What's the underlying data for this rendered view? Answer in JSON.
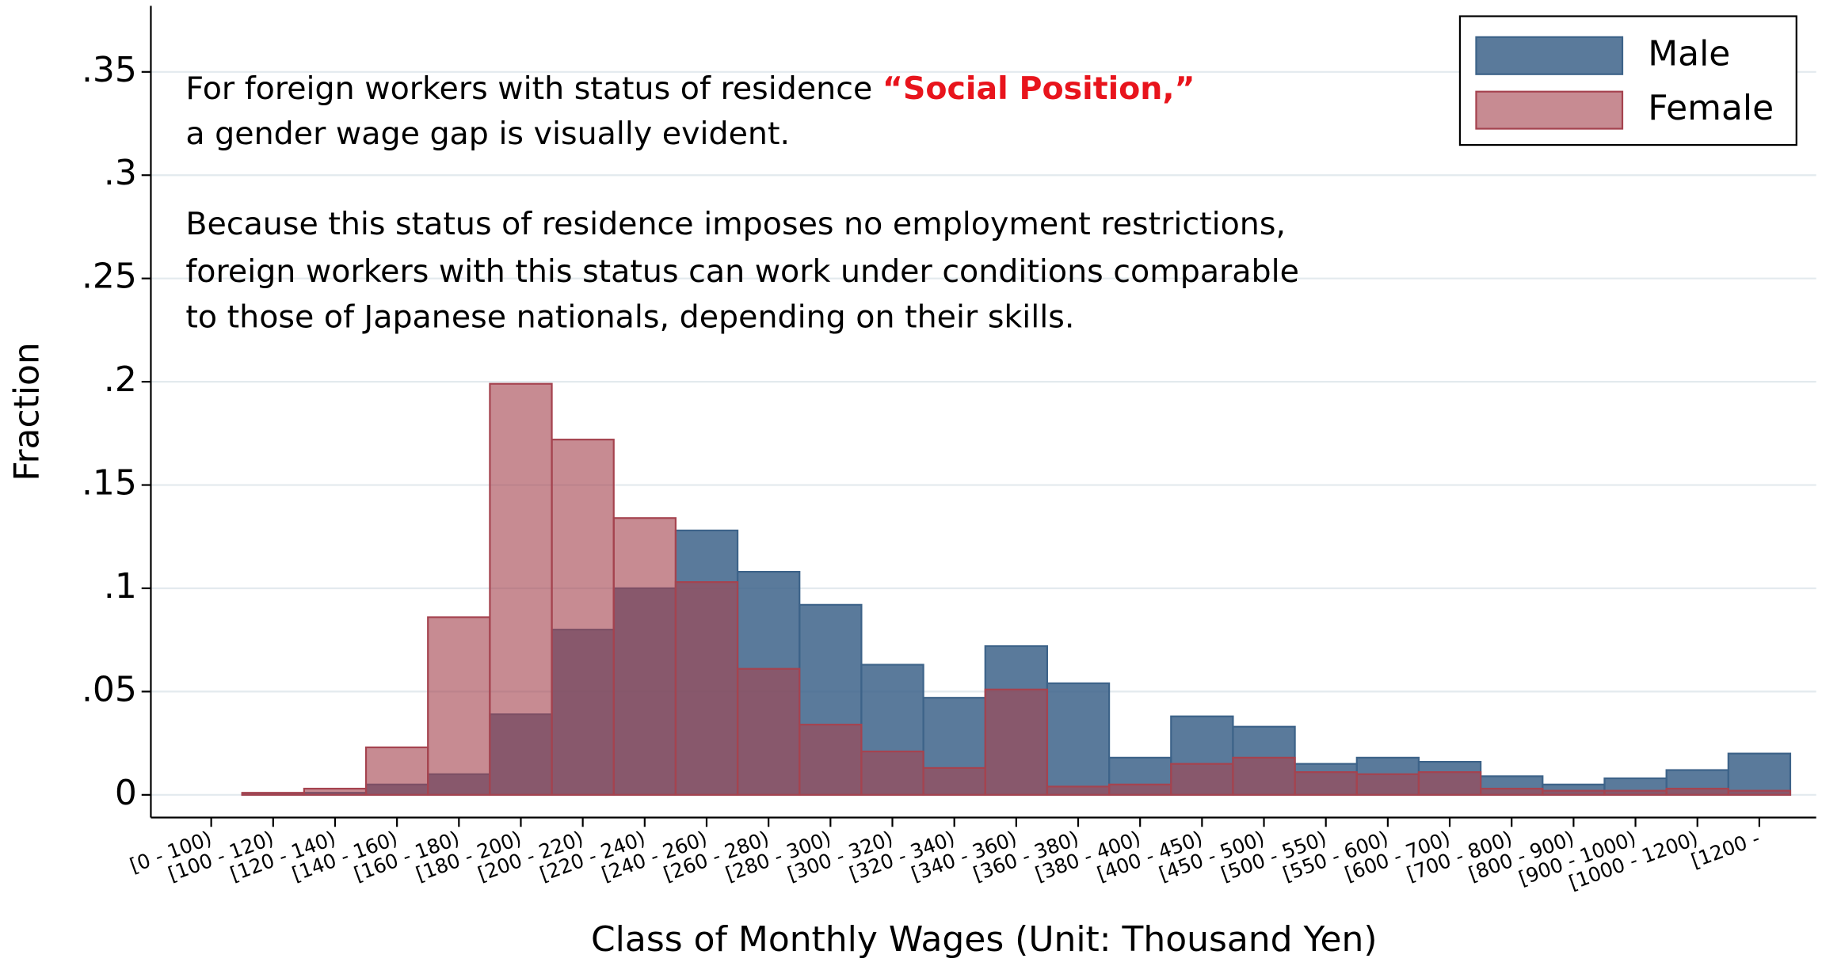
{
  "chart_data": {
    "type": "bar",
    "mode": "overlap",
    "xlabel": "Class of Monthly Wages (Unit: Thousand Yen)",
    "ylabel": "Fraction",
    "categories": [
      "[0 - 100)",
      "[100 - 120)",
      "[120 - 140)",
      "[140 - 160)",
      "[160 - 180)",
      "[180 - 200)",
      "[200 - 220)",
      "[220 - 240)",
      "[240 - 260)",
      "[260 - 280)",
      "[280 - 300)",
      "[300 - 320)",
      "[320 - 340)",
      "[340 - 360)",
      "[360 - 380)",
      "[380 - 400)",
      "[400 - 450)",
      "[450 - 500)",
      "[500 - 550)",
      "[550 - 600)",
      "[600 - 700)",
      "[700 - 800)",
      "[800 - 900)",
      "[900 - 1000)",
      "[1000 - 1200)",
      "[1200 -"
    ],
    "series": [
      {
        "name": "Male",
        "color": "#3d6389",
        "values": [
          0,
          0.0005,
          0.001,
          0.005,
          0.01,
          0.039,
          0.08,
          0.1,
          0.128,
          0.108,
          0.092,
          0.063,
          0.047,
          0.072,
          0.054,
          0.018,
          0.038,
          0.033,
          0.015,
          0.018,
          0.016,
          0.009,
          0.005,
          0.008,
          0.012,
          0.02
        ]
      },
      {
        "name": "Female",
        "color": "#a5434f",
        "values": [
          0,
          0.001,
          0.003,
          0.023,
          0.086,
          0.199,
          0.172,
          0.134,
          0.103,
          0.061,
          0.034,
          0.021,
          0.013,
          0.051,
          0.004,
          0.005,
          0.015,
          0.018,
          0.011,
          0.01,
          0.011,
          0.003,
          0.002,
          0.002,
          0.003,
          0.002
        ]
      }
    ],
    "ylim": [
      -0.011,
      0.382
    ],
    "yticks": [
      0,
      {
        "value": 0.05,
        "label": ".05"
      },
      {
        "value": 0.1,
        "label": ".1"
      },
      {
        "value": 0.15,
        "label": ".15"
      },
      {
        "value": 0.2,
        "label": ".2"
      },
      {
        "value": 0.25,
        "label": ".25"
      },
      {
        "value": 0.3,
        "label": ".3"
      },
      {
        "value": 0.35,
        "label": ".35"
      }
    ],
    "grid": true,
    "legend": "top-right",
    "annotation": {
      "line1": "For foreign workers with status of residence",
      "highlight": "“Social Position,”",
      "line2": "a gender wage gap is visually evident.",
      "paragraph2": [
        "Because this status of residence imposes no employment restrictions,",
        "foreign workers with this status can work under conditions comparable",
        "to those of Japanese nationals, depending on their skills."
      ]
    }
  }
}
